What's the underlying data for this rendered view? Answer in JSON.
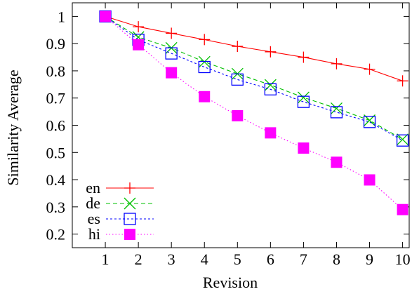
{
  "chart_data": {
    "type": "line",
    "title": "",
    "xlabel": "Revision",
    "ylabel": "Similarity Average",
    "xlim": [
      0,
      10.2
    ],
    "ylim": [
      0.15,
      1.05
    ],
    "x_ticks": [
      1,
      2,
      3,
      4,
      5,
      6,
      7,
      8,
      9,
      10
    ],
    "y_ticks": [
      0.2,
      0.3,
      0.4,
      0.5,
      0.6,
      0.7,
      0.8,
      0.9,
      1.0
    ],
    "y_tick_labels": [
      "0.2",
      "0.3",
      "0.4",
      "0.5",
      "0.6",
      "0.7",
      "0.8",
      "0.9",
      "1"
    ],
    "grid": false,
    "legend_position": "bottom-left",
    "x": [
      1,
      2,
      3,
      4,
      5,
      6,
      7,
      8,
      9,
      10
    ],
    "series": [
      {
        "name": "en",
        "values": [
          1.0,
          0.962,
          0.938,
          0.915,
          0.89,
          0.87,
          0.85,
          0.826,
          0.806,
          0.763
        ],
        "color": "#ff0000",
        "marker": "plus",
        "dash": "solid"
      },
      {
        "name": "de",
        "values": [
          1.0,
          0.924,
          0.884,
          0.833,
          0.789,
          0.748,
          0.702,
          0.662,
          0.618,
          0.548
        ],
        "color": "#00c000",
        "marker": "cross",
        "dash": "dashed"
      },
      {
        "name": "es",
        "values": [
          1.0,
          0.914,
          0.864,
          0.814,
          0.768,
          0.732,
          0.686,
          0.648,
          0.612,
          0.544
        ],
        "color": "#0000ff",
        "marker": "open-square",
        "dash": "short-dashed"
      },
      {
        "name": "hi",
        "values": [
          1.0,
          0.896,
          0.793,
          0.705,
          0.635,
          0.572,
          0.516,
          0.464,
          0.399,
          0.29
        ],
        "color": "#ff00ff",
        "marker": "filled-square",
        "dash": "dotted"
      }
    ]
  }
}
